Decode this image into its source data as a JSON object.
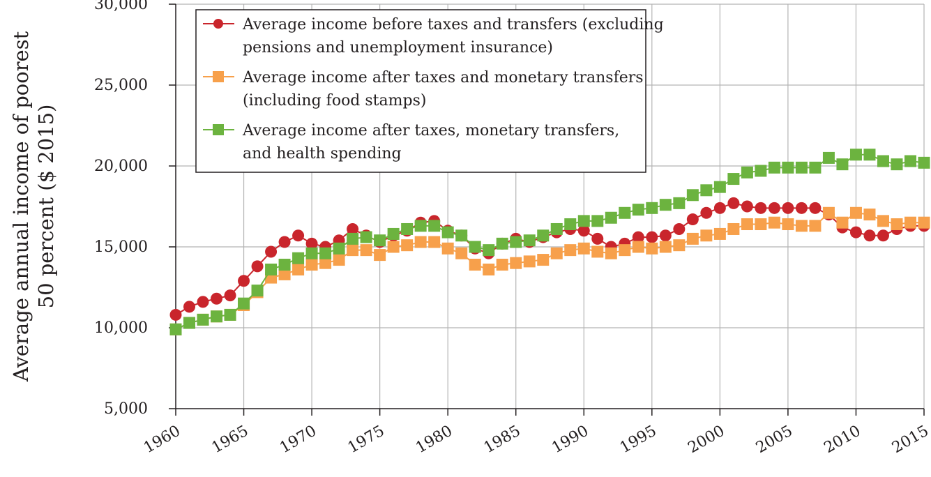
{
  "chart_data": {
    "type": "line",
    "title": "",
    "ylabel": "Average annual income of poorest 50 percent ($ 2015)",
    "ylabel_lines": [
      "Average annual income of poorest",
      "50 percent ($ 2015)"
    ],
    "xlabel": "",
    "xlim": [
      1960,
      2015
    ],
    "ylim": [
      5000,
      30000
    ],
    "x_ticks": [
      1960,
      1965,
      1970,
      1975,
      1980,
      1985,
      1990,
      1995,
      2000,
      2005,
      2010,
      2015
    ],
    "x_tick_labels": [
      "1960",
      "1965",
      "1970",
      "1975",
      "1980",
      "1985",
      "1990",
      "1995",
      "2000",
      "2005",
      "2010",
      "2015"
    ],
    "y_ticks": [
      5000,
      10000,
      15000,
      20000,
      25000,
      30000
    ],
    "y_tick_labels": [
      "5,000",
      "10,000",
      "15,000",
      "20,000",
      "25,000",
      "30,000"
    ],
    "grid": true,
    "legend_position": "top-left",
    "x": [
      1960,
      1961,
      1962,
      1963,
      1964,
      1965,
      1966,
      1967,
      1968,
      1969,
      1970,
      1971,
      1972,
      1973,
      1974,
      1975,
      1976,
      1977,
      1978,
      1979,
      1980,
      1981,
      1982,
      1983,
      1984,
      1985,
      1986,
      1987,
      1988,
      1989,
      1990,
      1991,
      1992,
      1993,
      1994,
      1995,
      1996,
      1997,
      1998,
      1999,
      2000,
      2001,
      2002,
      2003,
      2004,
      2005,
      2006,
      2007,
      2008,
      2009,
      2010,
      2011,
      2012,
      2013,
      2014,
      2015
    ],
    "series": [
      {
        "name": "Average income before taxes and transfers (excluding pensions and unemployment insurance)",
        "legend_lines": [
          "Average income before taxes and transfers (excluding",
          "pensions and unemployment insurance)"
        ],
        "color": "#c9252c",
        "marker": "circle",
        "values": [
          10800,
          11300,
          11600,
          11800,
          12000,
          12900,
          13800,
          14700,
          15300,
          15700,
          15200,
          15000,
          15400,
          16100,
          15700,
          15300,
          15700,
          16000,
          16500,
          16600,
          16000,
          15700,
          14900,
          14600,
          15200,
          15500,
          15300,
          15600,
          15900,
          16100,
          16000,
          15500,
          15000,
          15200,
          15600,
          15600,
          15700,
          16100,
          16700,
          17100,
          17400,
          17700,
          17500,
          17400,
          17400,
          17400,
          17400,
          17400,
          17000,
          16200,
          15900,
          15700,
          15700,
          16100,
          16300,
          16300
        ]
      },
      {
        "name": "Average income after taxes and monetary transfers (including food stamps)",
        "legend_lines": [
          "Average income after taxes and monetary transfers",
          "(including food stamps)"
        ],
        "color": "#f7a04b",
        "marker": "square",
        "values": [
          9900,
          10300,
          10500,
          10700,
          10800,
          11400,
          12200,
          13100,
          13300,
          13600,
          13900,
          14000,
          14200,
          14800,
          14800,
          14500,
          15000,
          15100,
          15300,
          15300,
          14900,
          14600,
          13900,
          13600,
          13900,
          14000,
          14100,
          14200,
          14600,
          14800,
          14900,
          14700,
          14600,
          14800,
          15000,
          14900,
          15000,
          15100,
          15500,
          15700,
          15800,
          16100,
          16400,
          16400,
          16500,
          16400,
          16300,
          16300,
          17100,
          16500,
          17100,
          17000,
          16600,
          16400,
          16500,
          16500
        ]
      },
      {
        "name": "Average income after taxes, monetary transfers, and health spending",
        "legend_lines": [
          "Average income after taxes, monetary transfers,",
          "and health spending"
        ],
        "color": "#6cb33f",
        "marker": "square",
        "values": [
          9900,
          10300,
          10500,
          10700,
          10800,
          11500,
          12300,
          13600,
          13900,
          14300,
          14600,
          14600,
          14900,
          15500,
          15600,
          15400,
          15800,
          16100,
          16300,
          16300,
          15900,
          15700,
          15000,
          14800,
          15200,
          15300,
          15400,
          15700,
          16100,
          16400,
          16600,
          16600,
          16800,
          17100,
          17300,
          17400,
          17600,
          17700,
          18200,
          18500,
          18700,
          19200,
          19600,
          19700,
          19900,
          19900,
          19900,
          19900,
          20500,
          20100,
          20700,
          20700,
          20300,
          20100,
          20300,
          20200
        ]
      }
    ]
  }
}
